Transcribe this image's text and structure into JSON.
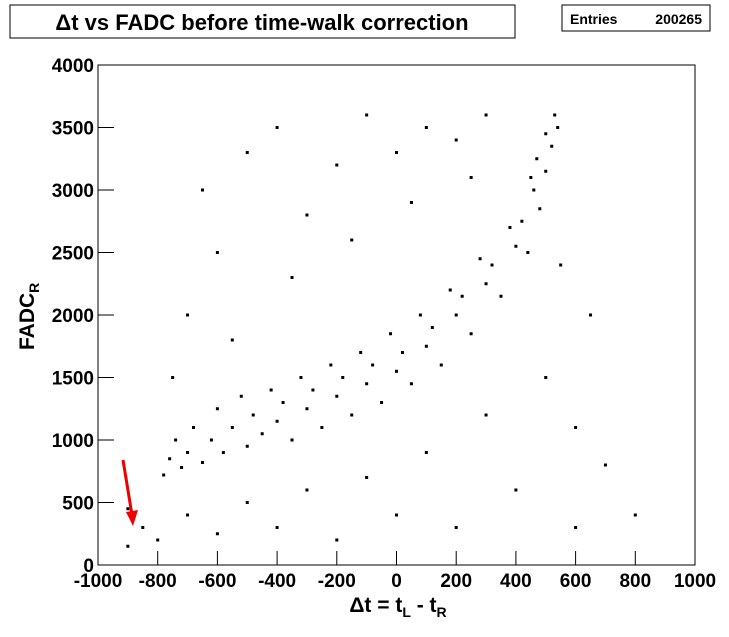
{
  "chart_data": {
    "type": "scatter",
    "title": "Δt vs FADC before time-walk correction",
    "stats": {
      "label": "Entries",
      "value": 200265
    },
    "x_label_parts": [
      "Δt = t",
      "L",
      " - t",
      "R"
    ],
    "y_label_parts": [
      "FADC",
      "R"
    ],
    "xlim": [
      -1000,
      1000
    ],
    "xticks": [
      -1000,
      -800,
      -600,
      -400,
      -200,
      0,
      200,
      400,
      600,
      800,
      1000
    ],
    "ylim": [
      0,
      4000
    ],
    "yticks": [
      0,
      500,
      1000,
      1500,
      2000,
      2500,
      3000,
      3500,
      4000
    ],
    "color": "#000000",
    "x": [
      -780,
      -760,
      -740,
      -720,
      -700,
      -680,
      -650,
      -620,
      -600,
      -580,
      -550,
      -520,
      -500,
      -480,
      -450,
      -420,
      -400,
      -380,
      -350,
      -320,
      -300,
      -280,
      -250,
      -220,
      -200,
      -180,
      -150,
      -120,
      -100,
      -80,
      -50,
      -20,
      0,
      20,
      50,
      80,
      100,
      120,
      150,
      180,
      200,
      220,
      250,
      280,
      300,
      320,
      350,
      380,
      400,
      420,
      440,
      460,
      480,
      500,
      520,
      540,
      530,
      500,
      470,
      450,
      -700,
      -650,
      -600,
      -500,
      -400,
      -300,
      -200,
      -100,
      0,
      100,
      200,
      300,
      -750,
      -550,
      -350,
      -150,
      50,
      250,
      -900,
      -850,
      -800,
      -700,
      -600,
      -500,
      -400,
      -300,
      -200,
      -100,
      0,
      100,
      200,
      300,
      400,
      500,
      600,
      700,
      800,
      650,
      550,
      600,
      -900
    ],
    "y": [
      720,
      850,
      1000,
      780,
      900,
      1100,
      820,
      1000,
      1250,
      900,
      1100,
      1350,
      950,
      1200,
      1050,
      1400,
      1150,
      1300,
      1000,
      1500,
      1250,
      1400,
      1100,
      1600,
      1350,
      1500,
      1200,
      1700,
      1450,
      1600,
      1300,
      1850,
      1550,
      1700,
      1450,
      2000,
      1750,
      1900,
      1600,
      2200,
      2000,
      2150,
      1850,
      2450,
      2250,
      2400,
      2150,
      2700,
      2550,
      2750,
      2500,
      3000,
      2850,
      3150,
      3350,
      3500,
      3600,
      3450,
      3250,
      3100,
      2000,
      3000,
      2500,
      3300,
      3500,
      2800,
      3200,
      3600,
      3300,
      3500,
      3400,
      3600,
      1500,
      1800,
      2300,
      2600,
      2900,
      3100,
      150,
      300,
      200,
      400,
      250,
      500,
      300,
      600,
      200,
      700,
      400,
      900,
      300,
      1200,
      600,
      1500,
      1100,
      800,
      400,
      2000,
      2400,
      300,
      450
    ]
  }
}
